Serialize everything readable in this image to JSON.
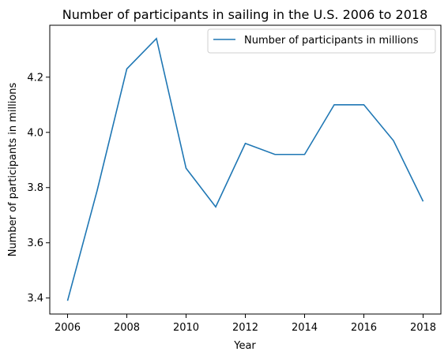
{
  "chart_data": {
    "type": "line",
    "title": "Number of participants in sailing in the U.S. 2006 to 2018",
    "xlabel": "Year",
    "ylabel": "Number of participants in millions",
    "x": [
      2006,
      2007,
      2008,
      2009,
      2010,
      2011,
      2012,
      2013,
      2014,
      2015,
      2016,
      2017,
      2018
    ],
    "series": [
      {
        "name": "Number of participants in millions",
        "values": [
          3.39,
          3.79,
          4.23,
          4.34,
          3.87,
          3.73,
          3.96,
          3.92,
          3.92,
          4.1,
          4.1,
          3.97,
          3.75
        ],
        "color": "#1f77b4"
      }
    ],
    "xlim": [
      2005.4,
      2018.6
    ],
    "ylim": [
      3.342,
      4.388
    ],
    "xticks": [
      2006,
      2008,
      2010,
      2012,
      2014,
      2016,
      2018
    ],
    "yticks": [
      3.4,
      3.6,
      3.8,
      4.0,
      4.2
    ],
    "xtick_labels": [
      "2006",
      "2008",
      "2010",
      "2012",
      "2014",
      "2016",
      "2018"
    ],
    "ytick_labels": [
      "3.4",
      "3.6",
      "3.8",
      "4.0",
      "4.2"
    ],
    "grid": false,
    "legend_position": "top-right"
  }
}
